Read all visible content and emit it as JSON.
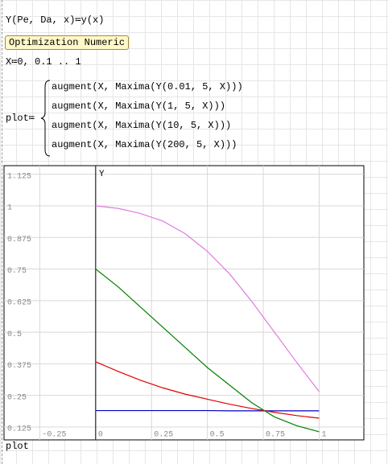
{
  "worksheet": {
    "definition": "Y(Pe, Da, x)≔y(x)",
    "button": "Optimization Numeric",
    "range": "X≔0, 0.1 .. 1",
    "plot_name": "plot≔",
    "plot_rows": [
      "augment(X, Maxima(Y(0.01, 5, X)))",
      "augment(X, Maxima(Y(1, 5, X)))",
      "augment(X, Maxima(Y(10, 5, X)))",
      "augment(X, Maxima(Y(200, 5, X)))"
    ],
    "caption": "plot"
  },
  "chart_data": {
    "type": "line",
    "y_label": "Y",
    "x": [
      0,
      0.1,
      0.2,
      0.3,
      0.4,
      0.5,
      0.6,
      0.7,
      0.8,
      0.9,
      1
    ],
    "series": [
      {
        "color": "#0000c0",
        "values": [
          0.19,
          0.19,
          0.19,
          0.19,
          0.19,
          0.19,
          0.189,
          0.189,
          0.189,
          0.189,
          0.189
        ]
      },
      {
        "color": "#e00000",
        "values": [
          0.383,
          0.345,
          0.31,
          0.28,
          0.255,
          0.235,
          0.215,
          0.198,
          0.183,
          0.17,
          0.16
        ]
      },
      {
        "color": "#008000",
        "values": [
          0.75,
          0.68,
          0.6,
          0.52,
          0.44,
          0.36,
          0.29,
          0.22,
          0.165,
          0.13,
          0.106
        ]
      },
      {
        "color": "#e07be0",
        "values": [
          1,
          0.99,
          0.97,
          0.94,
          0.89,
          0.82,
          0.73,
          0.62,
          0.5,
          0.38,
          0.265
        ]
      }
    ],
    "xlim": [
      -0.41,
      1.2
    ],
    "ylim": [
      0.074,
      1.159
    ],
    "xticks": [
      -0.25,
      0,
      0.25,
      0.5,
      0.75,
      1
    ],
    "yticks": [
      0.125,
      0.25,
      0.375,
      0.5,
      0.625,
      0.75,
      0.875,
      1,
      1.125
    ],
    "grid": true
  }
}
